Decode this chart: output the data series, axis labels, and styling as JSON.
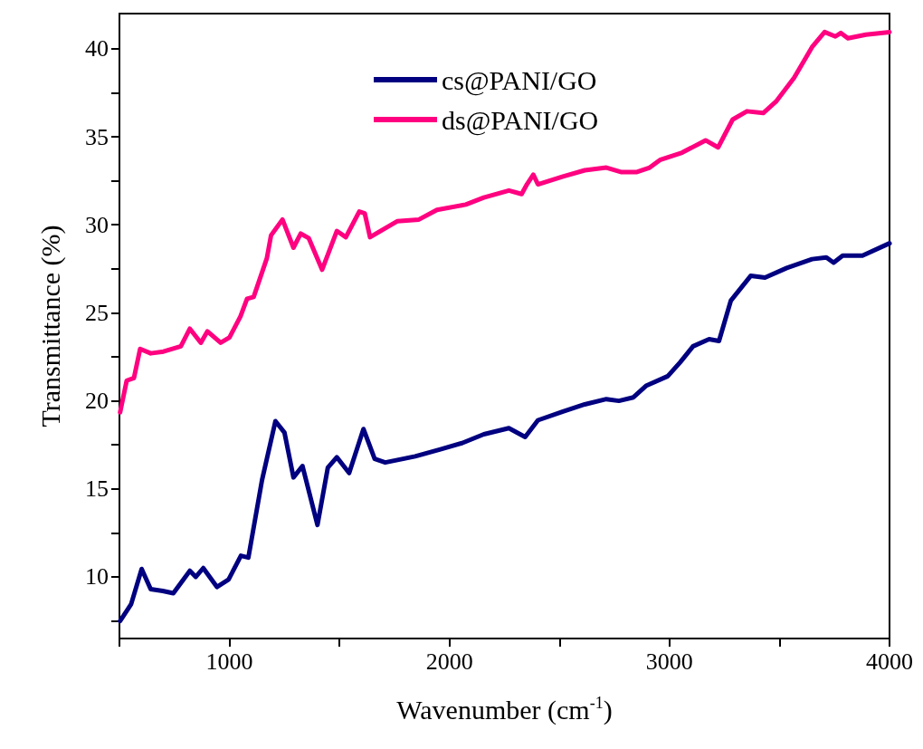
{
  "chart_data": {
    "type": "line",
    "xlabel": "Wavenumber (cm$^{-1}$)",
    "ylabel": "Transmittance (%)",
    "xlim": [
      500,
      4000
    ],
    "xticks": [
      {
        "value": 500,
        "label": null
      },
      1000,
      {
        "value": 1500,
        "label": null
      },
      2000,
      {
        "value": 2500,
        "label": null
      },
      3000,
      {
        "value": 3500,
        "label": null
      },
      4000
    ],
    "ylim": [
      6.5,
      42
    ],
    "yticks": [
      {
        "value": 7.5,
        "label": null
      },
      10,
      {
        "value": 12.5,
        "label": null
      },
      15,
      {
        "value": 17.5,
        "label": null
      },
      20,
      {
        "value": 22.5,
        "label": null
      },
      25,
      {
        "value": 27.5,
        "label": null
      },
      30,
      {
        "value": 32.5,
        "label": null
      },
      35,
      {
        "value": 37.5,
        "label": null
      },
      40
    ],
    "grid": false,
    "legend": "top left",
    "marker": "none",
    "line_style": "solid",
    "series": [
      {
        "name": "cs@PANI/GO",
        "color": "#000080",
        "x": [
          503,
          553,
          601,
          642,
          697,
          745,
          820,
          847,
          881,
          943,
          996,
          1052,
          1086,
          1148,
          1209,
          1250,
          1291,
          1332,
          1400,
          1447,
          1488,
          1544,
          1609,
          1660,
          1708,
          1844,
          1959,
          2057,
          2156,
          2270,
          2344,
          2402,
          2516,
          2615,
          2713,
          2770,
          2836,
          2893,
          2992,
          3049,
          3107,
          3180,
          3225,
          3279,
          3369,
          3434,
          3533,
          3648,
          3713,
          3746,
          3787,
          3877,
          4000
        ],
        "values": [
          7.5,
          8.45,
          10.45,
          9.3,
          9.2,
          9.07,
          10.35,
          10,
          10.5,
          9.43,
          9.85,
          11.2,
          11.1,
          15.5,
          18.85,
          18.2,
          15.65,
          16.3,
          12.95,
          16.2,
          16.8,
          15.9,
          18.4,
          16.7,
          16.5,
          16.85,
          17.25,
          17.6,
          18.1,
          18.45,
          17.95,
          18.9,
          19.4,
          19.8,
          20.1,
          20,
          20.2,
          20.85,
          21.4,
          22.2,
          23.1,
          23.5,
          23.4,
          25.7,
          27.1,
          27,
          27.55,
          28.05,
          28.15,
          27.85,
          28.25,
          28.25,
          28.95
        ]
      },
      {
        "name": "ds@PANI/GO",
        "color": "#ff0080",
        "x": [
          503,
          533,
          566,
          594,
          642,
          700,
          779,
          820,
          870,
          900,
          960,
          1000,
          1050,
          1080,
          1110,
          1170,
          1189,
          1241,
          1291,
          1324,
          1360,
          1421,
          1488,
          1529,
          1590,
          1615,
          1639,
          1762,
          1861,
          1943,
          2074,
          2156,
          2270,
          2328,
          2352,
          2381,
          2402,
          2516,
          2615,
          2713,
          2779,
          2852,
          2910,
          2959,
          3057,
          3164,
          3221,
          3287,
          3352,
          3426,
          3484,
          3566,
          3648,
          3705,
          3754,
          3779,
          3811,
          3893,
          4000
        ],
        "values": [
          19.35,
          21.15,
          21.3,
          22.95,
          22.7,
          22.8,
          23.1,
          24.1,
          23.3,
          23.95,
          23.3,
          23.6,
          24.8,
          25.8,
          25.9,
          28.1,
          29.4,
          30.3,
          28.7,
          29.5,
          29.25,
          27.45,
          29.65,
          29.3,
          30.75,
          30.65,
          29.3,
          30.2,
          30.3,
          30.85,
          31.15,
          31.55,
          31.95,
          31.75,
          32.3,
          32.85,
          32.3,
          32.75,
          33.1,
          33.25,
          33,
          33,
          33.25,
          33.7,
          34.1,
          34.8,
          34.4,
          35.98,
          36.45,
          36.35,
          37,
          38.35,
          40.1,
          40.95,
          40.7,
          40.9,
          40.6,
          40.8,
          40.95
        ]
      }
    ]
  }
}
